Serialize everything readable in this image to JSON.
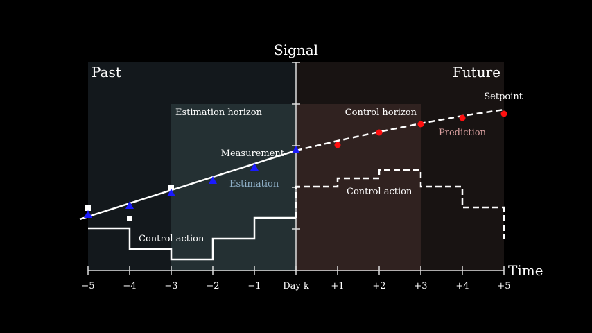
{
  "regions": {
    "past": "Past",
    "future": "Future"
  },
  "axes": {
    "y_label": "Signal",
    "x_label": "Time",
    "ticks": [
      "−5",
      "−4",
      "−3",
      "−2",
      "−1",
      "Day k",
      "+1",
      "+2",
      "+3",
      "+4",
      "+5"
    ]
  },
  "labels": {
    "estimation_horizon": "Estimation horizon",
    "control_horizon": "Control horizon",
    "measurement": "Measurement",
    "estimation": "Estimation",
    "prediction": "Prediction",
    "setpoint": "Setpoint",
    "control_action_past": "Control action",
    "control_action_future": "Control action"
  },
  "colors": {
    "past_region": "#13181c",
    "future_region": "#181312",
    "estimation_horizon_fill": "#243033",
    "control_horizon_fill": "#302220",
    "estimation_label": "#8fb0c8",
    "prediction_label": "#d9a0a0",
    "triangle": "#1a1aff",
    "prediction_dot": "#ff1010"
  }
}
